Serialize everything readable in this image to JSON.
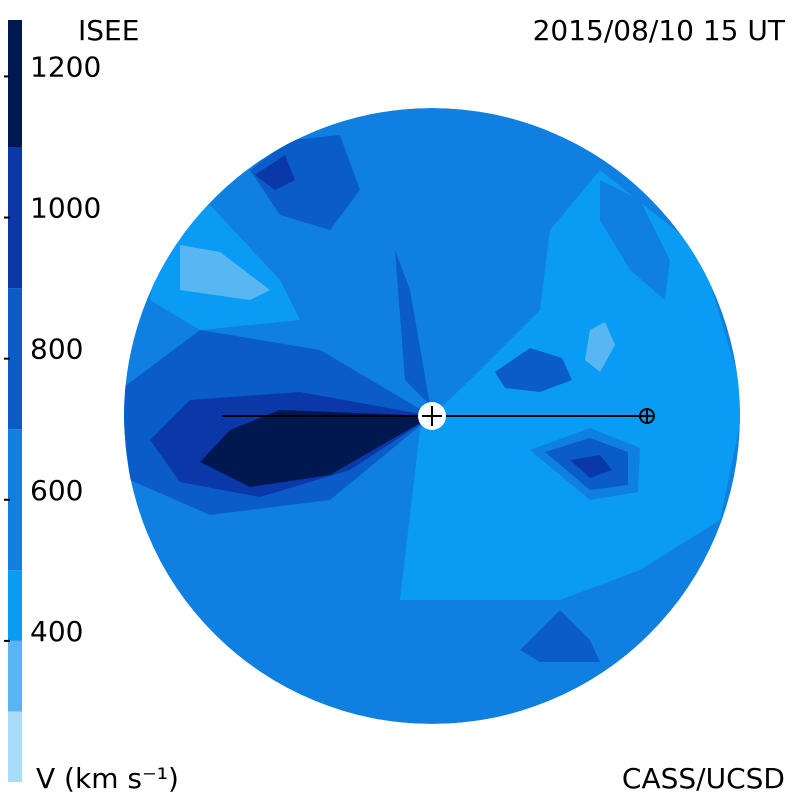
{
  "chart_data": {
    "type": "map",
    "title": "ISEE",
    "subtitle": "2015/08/10 15 UT",
    "colorbar_label": "V (km s⁻¹)",
    "credit": "CASS/UCSD",
    "colorbar_lim": [
      200,
      1280
    ],
    "colorbar_ticks": [
      400,
      600,
      800,
      1000,
      1200
    ],
    "levels": [
      {
        "lo": 200,
        "hi": 300,
        "color": "#a8dcf8"
      },
      {
        "lo": 300,
        "hi": 400,
        "color": "#58b6f2"
      },
      {
        "lo": 400,
        "hi": 500,
        "color": "#0a9cf5"
      },
      {
        "lo": 500,
        "hi": 700,
        "color": "#1080e0"
      },
      {
        "lo": 700,
        "hi": 900,
        "color": "#0a5cc8"
      },
      {
        "lo": 900,
        "hi": 1100,
        "color": "#0a38a8"
      },
      {
        "lo": 1100,
        "hi": 1280,
        "color": "#001850"
      }
    ]
  }
}
